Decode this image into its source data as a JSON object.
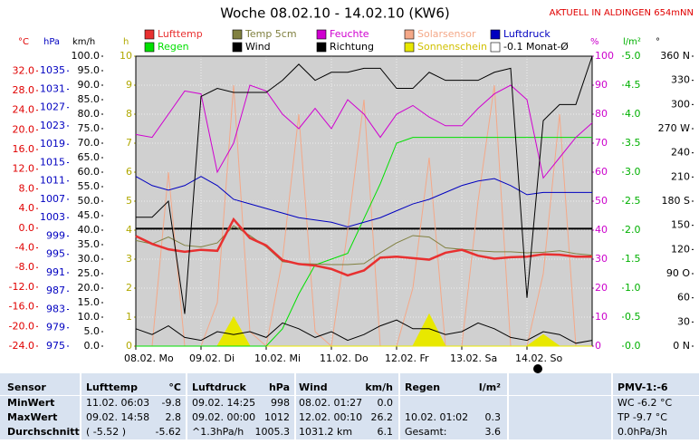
{
  "chart_data": {
    "type": "line",
    "title": "Woche 08.02.10 - 14.02.10 (KW6)",
    "annotation": "AKTUELL IN ALDINGEN 654mNN",
    "x": [
      0,
      0.25,
      0.5,
      0.75,
      1,
      1.25,
      1.5,
      1.75,
      2,
      2.25,
      2.5,
      2.75,
      3,
      3.25,
      3.5,
      3.75,
      4,
      4.25,
      4.5,
      4.75,
      5,
      5.25,
      5.5,
      5.75,
      6,
      6.25,
      6.5,
      6.75,
      7
    ],
    "xlim": [
      0,
      7
    ],
    "xticks": [
      {
        "value": 0,
        "label": "08.02. Mo"
      },
      {
        "value": 1,
        "label": "09.02. Di"
      },
      {
        "value": 2,
        "label": "10.02. Mi"
      },
      {
        "value": 3,
        "label": "11.02. Do"
      },
      {
        "value": 4,
        "label": "12.02. Fr"
      },
      {
        "value": 5,
        "label": "13.02. Sa"
      },
      {
        "value": 6,
        "label": "14.02. So"
      }
    ],
    "axes": [
      {
        "unit": "°C",
        "color": "#e00000",
        "lim": [
          -24,
          35
        ],
        "ticks": [
          {
            "value": 32,
            "label": "32.0"
          },
          {
            "value": 28,
            "label": "28.0"
          },
          {
            "value": 24,
            "label": "24.0"
          },
          {
            "value": 20,
            "label": "20.0"
          },
          {
            "value": 16,
            "label": "16.0"
          },
          {
            "value": 12,
            "label": "12.0"
          },
          {
            "value": 8,
            "label": "8.0"
          },
          {
            "value": 4,
            "label": "4.0"
          },
          {
            "value": 0,
            "label": "0.0"
          },
          {
            "value": -4,
            "label": "-4.0"
          },
          {
            "value": -8,
            "label": "-8.0"
          },
          {
            "value": -12,
            "label": "-12.0"
          },
          {
            "value": -16,
            "label": "-16.0"
          },
          {
            "value": -20,
            "label": "-20.0"
          },
          {
            "value": -24,
            "label": "-24.0"
          }
        ]
      },
      {
        "unit": "hPa",
        "color": "#0000c0",
        "lim": [
          975,
          1038.2
        ],
        "ticks": [
          1035,
          1031,
          1027,
          1023,
          1019,
          1015,
          1011,
          1007,
          1003,
          999,
          995,
          991,
          987,
          983,
          979,
          975
        ]
      },
      {
        "unit": "km/h",
        "color": "#000000",
        "lim": [
          0,
          100
        ],
        "ticks": [
          {
            "value": 100,
            "label": "100.0"
          },
          {
            "value": 95,
            "label": "95.0"
          },
          {
            "value": 90,
            "label": "90.0"
          },
          {
            "value": 85,
            "label": "85.0"
          },
          {
            "value": 80,
            "label": "80.0"
          },
          {
            "value": 75,
            "label": "75.0"
          },
          {
            "value": 70,
            "label": "70.0"
          },
          {
            "value": 65,
            "label": "65.0"
          },
          {
            "value": 60,
            "label": "60.0"
          },
          {
            "value": 55,
            "label": "55.0"
          },
          {
            "value": 50,
            "label": "50.0"
          },
          {
            "value": 45,
            "label": "45.0"
          },
          {
            "value": 40,
            "label": "40.0"
          },
          {
            "value": 35,
            "label": "35.0"
          },
          {
            "value": 30,
            "label": "30.0"
          },
          {
            "value": 25,
            "label": "25.0"
          },
          {
            "value": 20,
            "label": "20.0"
          },
          {
            "value": 15,
            "label": "15.0"
          },
          {
            "value": 10,
            "label": "10.0"
          },
          {
            "value": 5,
            "label": "5.0"
          },
          {
            "value": 0,
            "label": "0.0"
          }
        ]
      },
      {
        "unit": "h",
        "color": "#b0a800",
        "lim": [
          0,
          10
        ],
        "ticks": [
          10,
          9,
          8,
          7,
          6,
          5,
          4,
          3,
          2,
          1,
          0
        ],
        "grid": true
      },
      {
        "unit": "%",
        "color": "#cc00cc",
        "lim": [
          0,
          100
        ],
        "ticks": [
          100,
          90,
          80,
          70,
          60,
          50,
          40,
          30,
          20,
          10,
          0
        ]
      },
      {
        "unit": "l/m²",
        "color": "#00b000",
        "lim": [
          0,
          5
        ],
        "ticks": [
          {
            "value": 5,
            "label": "5.0"
          },
          {
            "value": 4.5,
            "label": "4.5"
          },
          {
            "value": 4,
            "label": "4.0"
          },
          {
            "value": 3.5,
            "label": "3.5"
          },
          {
            "value": 3,
            "label": "3.0"
          },
          {
            "value": 2.5,
            "label": "2.5"
          },
          {
            "value": 2,
            "label": "2.0"
          },
          {
            "value": 1.5,
            "label": "1.5"
          },
          {
            "value": 1,
            "label": "1.0"
          },
          {
            "value": 0.5,
            "label": "0.5"
          },
          {
            "value": 0,
            "label": "0.0"
          }
        ]
      },
      {
        "unit": "°",
        "color": "#000000",
        "lim": [
          0,
          360
        ],
        "ticks": [
          {
            "value": 360,
            "label": "360 N"
          },
          330,
          300,
          {
            "value": 270,
            "label": "270 W"
          },
          240,
          210,
          {
            "value": 180,
            "label": "180 S"
          },
          150,
          120,
          {
            "value": 90,
            "label": "90 O"
          },
          60,
          30,
          {
            "value": 0,
            "label": "0 N"
          }
        ]
      }
    ],
    "series": [
      {
        "name": "Lufttemp",
        "color": "#e83030",
        "axis": 0,
        "style": "thick",
        "values": [
          -1.6,
          -3.2,
          -4.3,
          -4.8,
          -4.4,
          -4.6,
          1.8,
          -2,
          -3.5,
          -6.5,
          -7.3,
          -7.6,
          -8.3,
          -9.6,
          -8.6,
          -6,
          -5.8,
          -6.1,
          -6.4,
          -5,
          -4.4,
          -5.6,
          -6.2,
          -5.9,
          -5.8,
          -5.3,
          -5.4,
          -5.8,
          -5.8
        ]
      },
      {
        "name": "Regen",
        "color": "#00e000",
        "axis": 5,
        "values": [
          0,
          0,
          0,
          0,
          0,
          0,
          0,
          0,
          0,
          0.3,
          0.9,
          1.4,
          1.5,
          1.6,
          2.2,
          2.8,
          3.5,
          3.6,
          3.6,
          3.6,
          3.6,
          3.6,
          3.6,
          3.6,
          3.6,
          3.6,
          3.6,
          3.6,
          3.6
        ]
      },
      {
        "name": "Temp 5cm",
        "color": "#808040",
        "axis": 0,
        "values": [
          -2.5,
          -3.2,
          -1.8,
          -3.5,
          -3.8,
          -3,
          0.5,
          -1.5,
          -3.8,
          -6.8,
          -7.2,
          -7.3,
          -7.4,
          -7.4,
          -7.2,
          -5,
          -3,
          -1.5,
          -1.8,
          -4,
          -4.3,
          -4.6,
          -4.8,
          -4.8,
          -5,
          -4.9,
          -4.6,
          -5.2,
          -5.5
        ]
      },
      {
        "name": "Wind",
        "color": "#000000",
        "axis": 2,
        "values": [
          6,
          4,
          7,
          3,
          2,
          5,
          4,
          5,
          3,
          8,
          6,
          3,
          5,
          2,
          4,
          7,
          9,
          6,
          6,
          4,
          5,
          8,
          6,
          3,
          2,
          5,
          4,
          1,
          2
        ]
      },
      {
        "name": "Feuchte",
        "color": "#d000d0",
        "axis": 4,
        "values": [
          73,
          72,
          80,
          88,
          87,
          60,
          70,
          90,
          88,
          80,
          75,
          82,
          75,
          85,
          80,
          72,
          80,
          83,
          79,
          76,
          76,
          82,
          87,
          90,
          85,
          58,
          65,
          72,
          77
        ]
      },
      {
        "name": "Richtung",
        "color": "#000000",
        "axis": 6,
        "values": [
          160,
          160,
          180,
          40,
          310,
          320,
          315,
          315,
          315,
          330,
          350,
          330,
          340,
          340,
          345,
          345,
          320,
          320,
          340,
          330,
          330,
          330,
          340,
          345,
          60,
          280,
          300,
          300,
          360
        ]
      },
      {
        "name": "Solarsensor",
        "color": "#f4a888",
        "axis": 4,
        "values": [
          0,
          0,
          60,
          0,
          0,
          15,
          90,
          5,
          0,
          30,
          80,
          5,
          0,
          40,
          85,
          0,
          0,
          20,
          65,
          0,
          0,
          50,
          90,
          0,
          0,
          25,
          80,
          0,
          0
        ]
      },
      {
        "name": "Sonnenschein",
        "color": "#e8e800",
        "axis": 3,
        "style": "area",
        "values": [
          0,
          0,
          0,
          0,
          0,
          0,
          1,
          0,
          0,
          0,
          0,
          0,
          0,
          0,
          0,
          0,
          0,
          0,
          1.1,
          0,
          0,
          0,
          0,
          0,
          0,
          0.4,
          0,
          0,
          0
        ]
      },
      {
        "name": "Luftdruck",
        "color": "#0000c0",
        "axis": 1,
        "values": [
          1012,
          1010,
          1009,
          1010,
          1012,
          1010,
          1007,
          1006,
          1005,
          1004,
          1003,
          1002.5,
          1002,
          1001,
          1002,
          1003,
          1004.5,
          1006,
          1007,
          1008.5,
          1010,
          1011,
          1011.5,
          1010,
          1008,
          1008.5,
          1008.5,
          1008.5,
          1008.5
        ]
      }
    ],
    "reference_line": {
      "name": "-0.1 Monat-Ø",
      "value": -0.1,
      "axis": 0,
      "color": "#000000"
    }
  },
  "table": {
    "rows": [
      [
        "Sensor",
        "Lufttemp",
        "°C",
        "Luftdruck",
        "hPa",
        "Wind",
        "km/h",
        "Regen",
        "l/m²",
        "PMV-1:-6"
      ],
      [
        "MinWert",
        "11.02. 06:03",
        "-9.8",
        "09.02. 14:25",
        "998",
        "08.02. 01:27",
        "0.0",
        null,
        null,
        "WC -6.2 °C"
      ],
      [
        "MaxWert",
        "09.02. 14:58",
        "2.8",
        "09.02. 00:00",
        "1012",
        "12.02. 00:10",
        "26.2",
        "10.02. 01:02",
        "0.3",
        "TP -9.7 °C"
      ],
      [
        "Durchschnitt",
        "( -5.52 )",
        "-5.62",
        "^1.3hPa/h",
        "1005.3",
        "1031.2 km",
        "6.1",
        "Gesamt:",
        "3.6",
        "0.0hPa/3h"
      ]
    ]
  }
}
